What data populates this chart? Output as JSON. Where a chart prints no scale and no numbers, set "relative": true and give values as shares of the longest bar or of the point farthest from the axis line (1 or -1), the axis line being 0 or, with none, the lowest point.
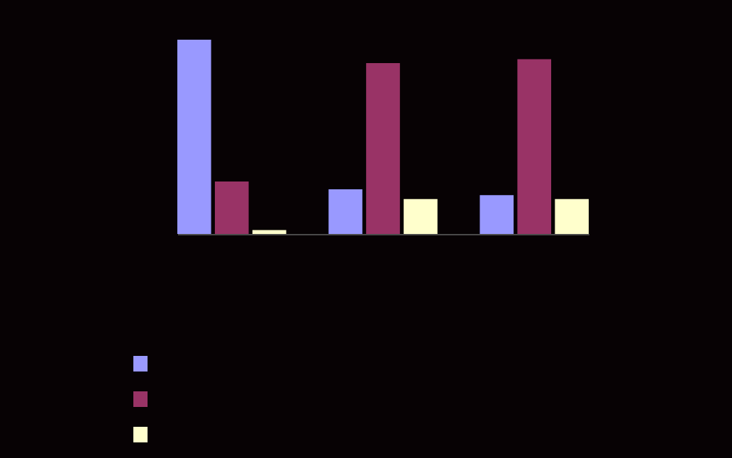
{
  "chart_data": {
    "type": "bar",
    "relative": true,
    "categories": [
      null,
      null,
      null
    ],
    "series": [
      {
        "color": "#9999ff",
        "values": [
          1,
          0.23,
          0.2
        ]
      },
      {
        "color": "#993366",
        "values": [
          0.27,
          0.88,
          0.9
        ]
      },
      {
        "color": "#ffffcc",
        "values": [
          0.02,
          0.18,
          0.18
        ]
      }
    ]
  }
}
